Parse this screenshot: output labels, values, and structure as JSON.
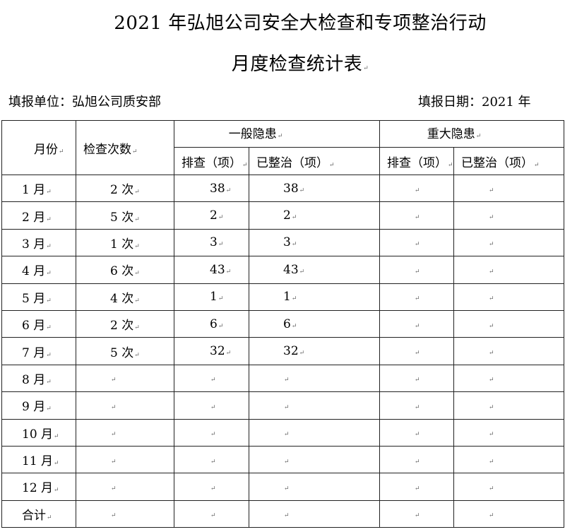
{
  "title_line1": "2021 年弘旭公司安全大检查和专项整治行动",
  "title_line2": "月度检查统计表",
  "fill_unit": "填报单位：弘旭公司质安部",
  "fill_date": "填报日期：2021 年",
  "headers": {
    "month": "月份",
    "count": "检查次数",
    "general": "一般隐患",
    "major": "重大隐患",
    "general_checked": "排查（项）",
    "general_fixed": "已整治（项）",
    "major_checked": "排查（项）",
    "major_fixed": "已整治（项）"
  },
  "rows": [
    {
      "month": "1 月",
      "count": "2 次",
      "g_checked": "38",
      "g_fixed": "38",
      "m_checked": "",
      "m_fixed": ""
    },
    {
      "month": "2 月",
      "count": "5 次",
      "g_checked": "2",
      "g_fixed": "2",
      "m_checked": "",
      "m_fixed": ""
    },
    {
      "month": "3 月",
      "count": "1 次",
      "g_checked": "3",
      "g_fixed": "3",
      "m_checked": "",
      "m_fixed": ""
    },
    {
      "month": "4 月",
      "count": "6 次",
      "g_checked": "43",
      "g_fixed": "43",
      "m_checked": "",
      "m_fixed": ""
    },
    {
      "month": "5 月",
      "count": "4 次",
      "g_checked": "1",
      "g_fixed": "1",
      "m_checked": "",
      "m_fixed": ""
    },
    {
      "month": "6 月",
      "count": "2 次",
      "g_checked": "6",
      "g_fixed": "6",
      "m_checked": "",
      "m_fixed": ""
    },
    {
      "month": "7 月",
      "count": "5 次",
      "g_checked": "32",
      "g_fixed": "32",
      "m_checked": "",
      "m_fixed": ""
    },
    {
      "month": "8 月",
      "count": "",
      "g_checked": "",
      "g_fixed": "",
      "m_checked": "",
      "m_fixed": ""
    },
    {
      "month": "9 月",
      "count": "",
      "g_checked": "",
      "g_fixed": "",
      "m_checked": "",
      "m_fixed": ""
    },
    {
      "month": "10 月",
      "count": "",
      "g_checked": "",
      "g_fixed": "",
      "m_checked": "",
      "m_fixed": ""
    },
    {
      "month": "11 月",
      "count": "",
      "g_checked": "",
      "g_fixed": "",
      "m_checked": "",
      "m_fixed": ""
    },
    {
      "month": "12 月",
      "count": "",
      "g_checked": "",
      "g_fixed": "",
      "m_checked": "",
      "m_fixed": ""
    },
    {
      "month": "合计",
      "count": "",
      "g_checked": "",
      "g_fixed": "",
      "m_checked": "",
      "m_fixed": ""
    }
  ]
}
